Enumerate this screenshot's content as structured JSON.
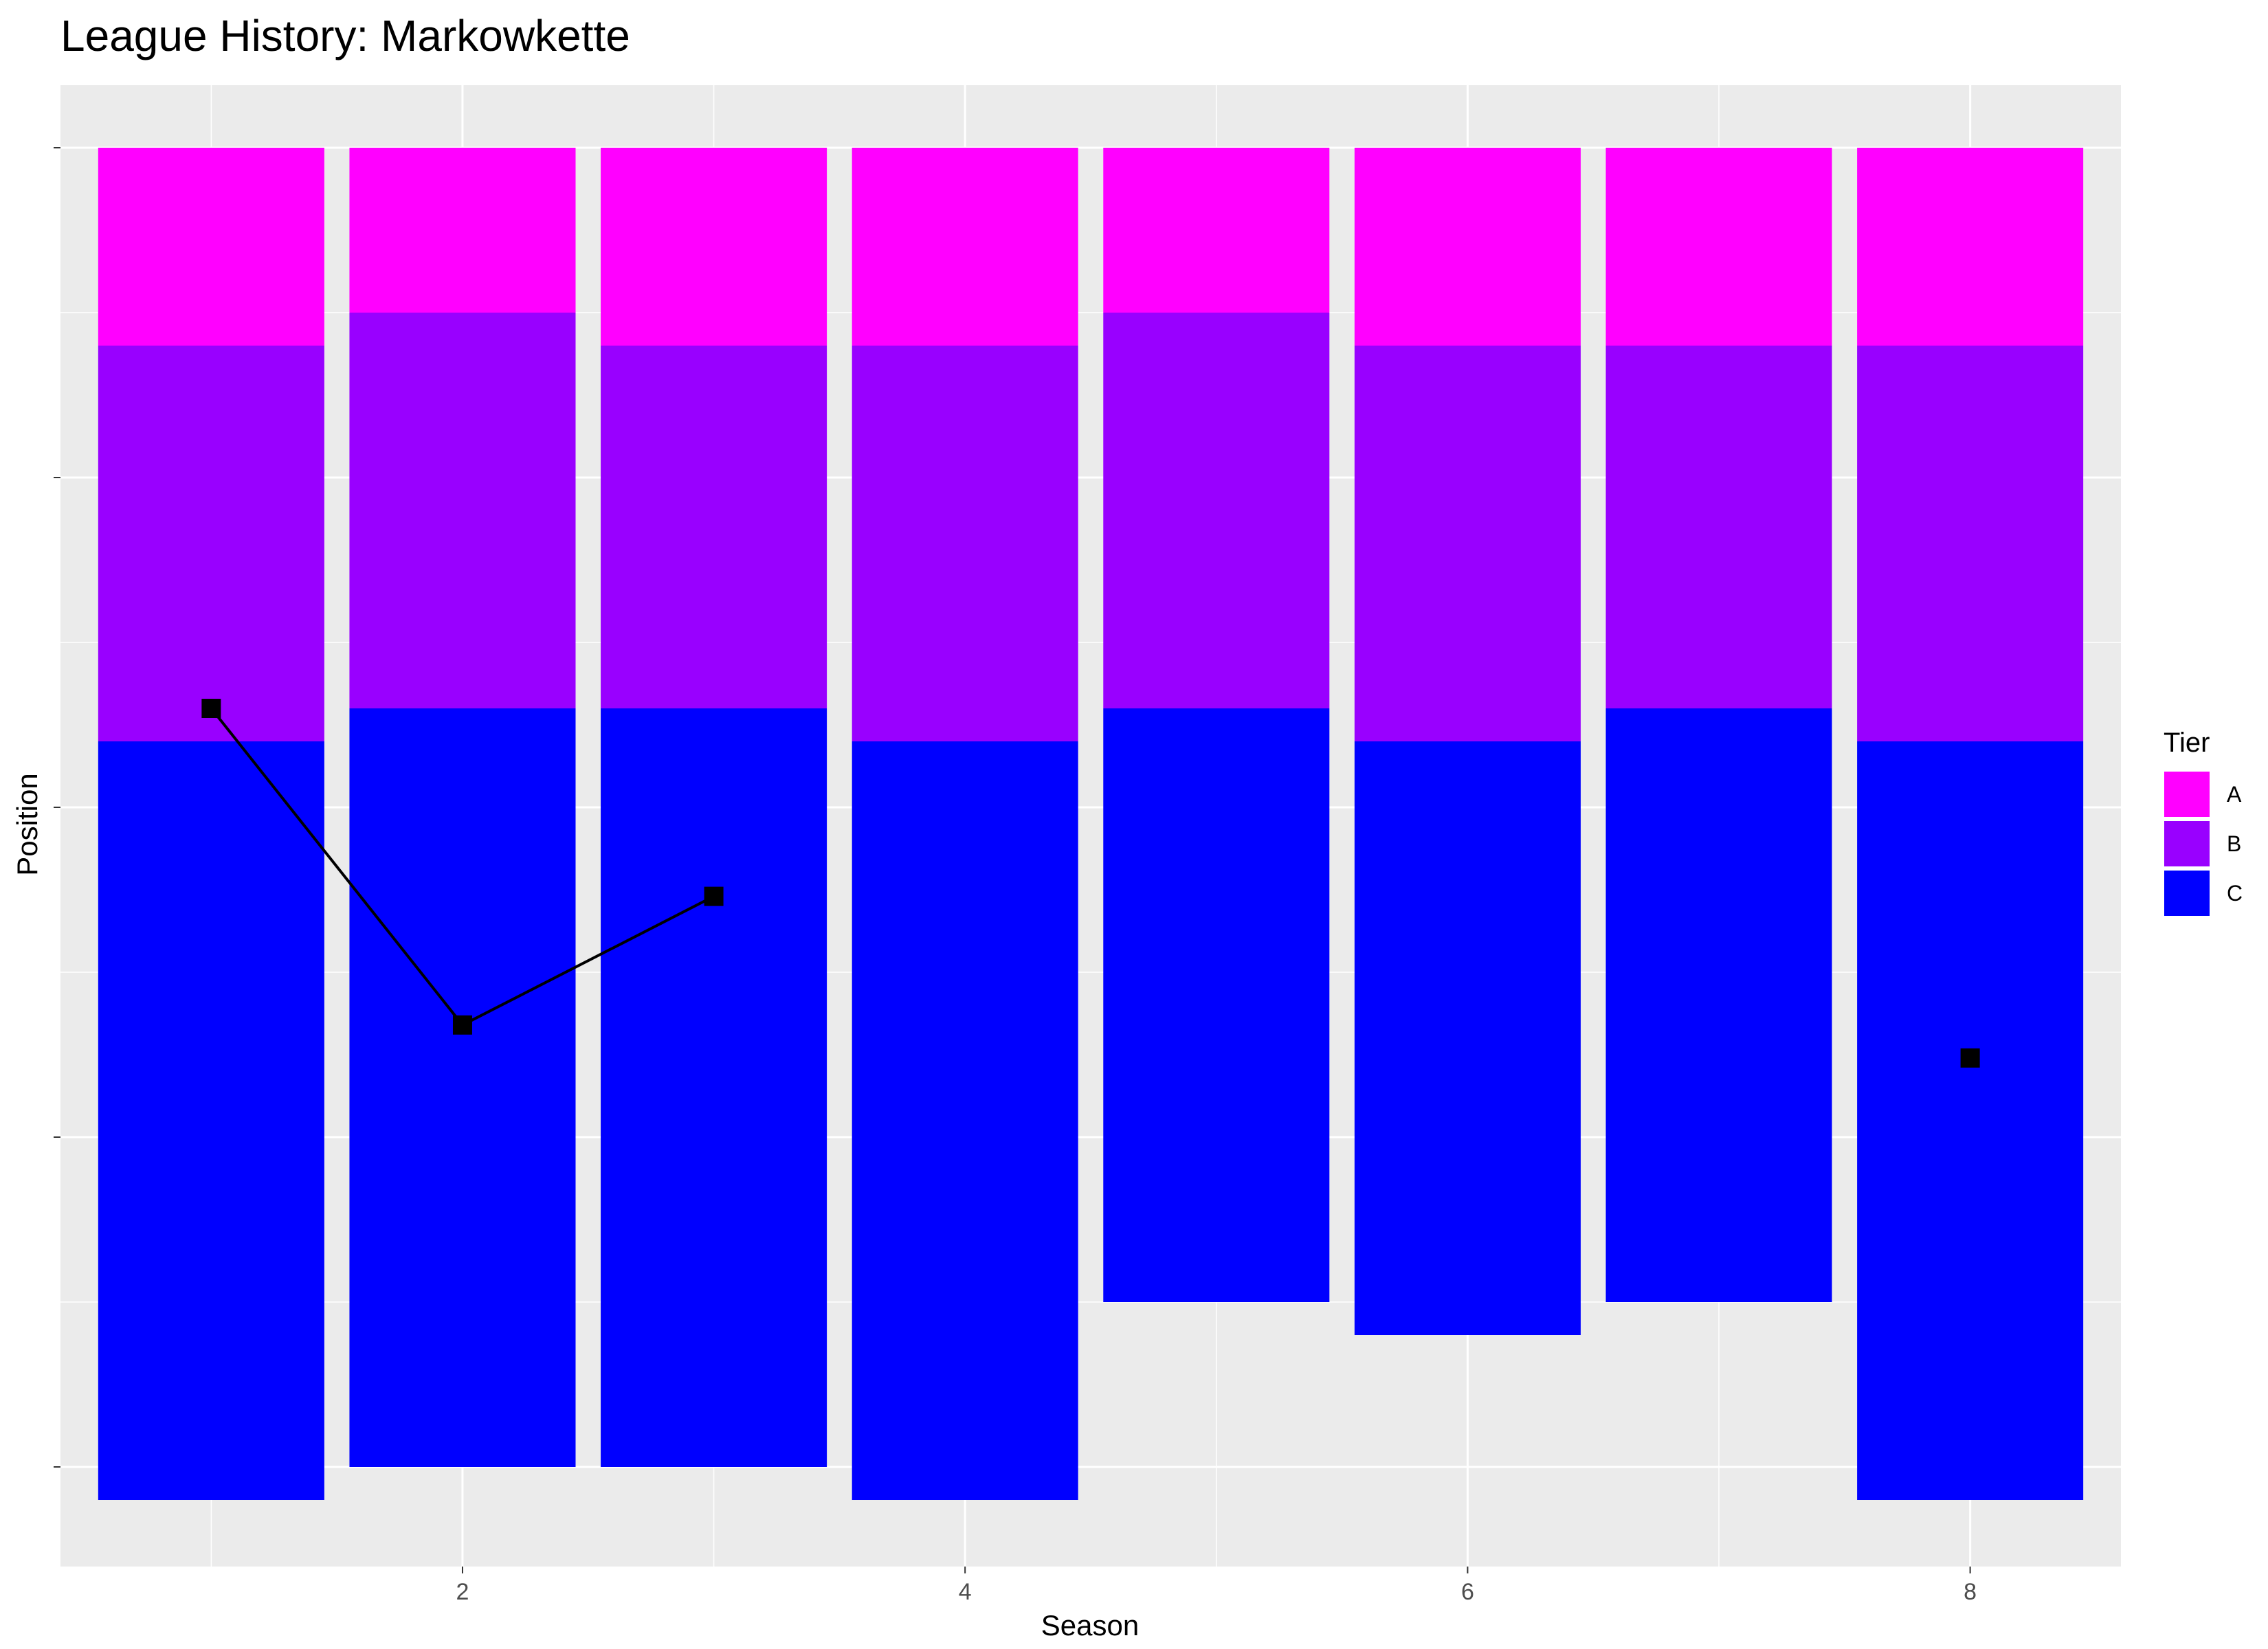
{
  "chart_data": {
    "type": "bar",
    "title": "League History: Markowkette",
    "xlabel": "Season",
    "ylabel": "Position",
    "xlim": [
      0.4,
      8.6
    ],
    "x_ticks": [
      2,
      4,
      6,
      8
    ],
    "y_ticks_labeled": false,
    "grid": true,
    "legend": {
      "title": "Tier",
      "placement": "right"
    },
    "tiers": [
      {
        "name": "A",
        "color": "#FF00FF"
      },
      {
        "name": "B",
        "color": "#9900FF"
      },
      {
        "name": "C",
        "color": "#0000FF"
      }
    ],
    "seasons": [
      {
        "season": 1,
        "A": 6,
        "B": 12,
        "C": 23
      },
      {
        "season": 2,
        "A": 5,
        "B": 12,
        "C": 23
      },
      {
        "season": 3,
        "A": 6,
        "B": 11,
        "C": 23
      },
      {
        "season": 4,
        "A": 6,
        "B": 12,
        "C": 23
      },
      {
        "season": 5,
        "A": 5,
        "B": 12,
        "C": 18
      },
      {
        "season": 6,
        "A": 6,
        "B": 12,
        "C": 18
      },
      {
        "season": 7,
        "A": 6,
        "B": 11,
        "C": 18
      },
      {
        "season": 8,
        "A": 6,
        "B": 12,
        "C": 23
      }
    ],
    "position_series": [
      {
        "season": 1,
        "position": 17
      },
      {
        "season": 2,
        "position": 26.6
      },
      {
        "season": 3,
        "position": 22.7
      },
      {
        "season": 8,
        "position": 27.6
      }
    ],
    "line_segments": [
      [
        1,
        2,
        3
      ]
    ],
    "marker_color": "#000000",
    "panel_bg": "#EBEBEB",
    "grid_color": "#FFFFFF"
  }
}
